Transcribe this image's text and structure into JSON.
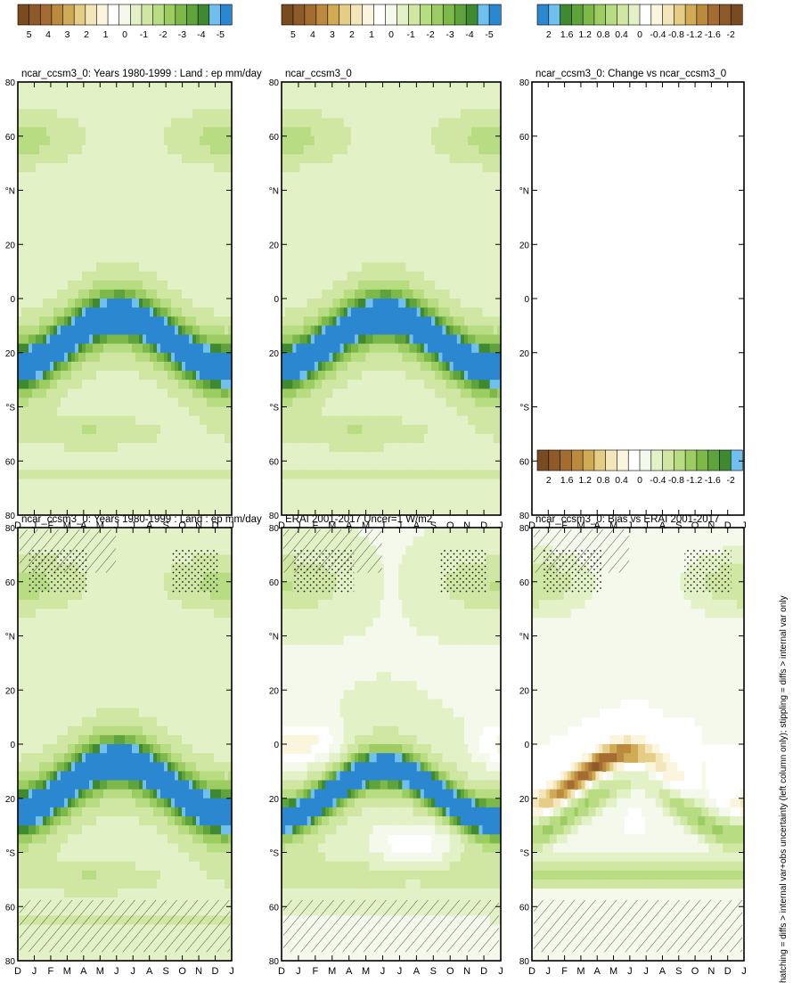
{
  "footer_note": "hatching = diffs > internal var+obs uncertainty (left column only); stippling = diffs > internal var only",
  "palettes": {
    "precip": [
      "#7a4b1e",
      "#8e5a28",
      "#a56c32",
      "#bc8a3e",
      "#d1aa55",
      "#e5cd86",
      "#f3e6bb",
      "#fbf5dd",
      "#ffffff",
      "#f4f9ec",
      "#e3f1c6",
      "#cfe7a2",
      "#b8dc82",
      "#9dcd62",
      "#7db948",
      "#5ea33c",
      "#3f8a30",
      "#6fc0ee",
      "#2b87cf"
    ],
    "diff": [
      "#2b87cf",
      "#6fc0ee",
      "#3f8a30",
      "#5ea33c",
      "#7db948",
      "#9dcd62",
      "#b8dc82",
      "#cfe7a2",
      "#e3f1c6",
      "#ffffff",
      "#fbf5dd",
      "#f3e6bb",
      "#e5cd86",
      "#d1aa55",
      "#bc8a3e",
      "#a56c32",
      "#8e5a28",
      "#7a4b1e"
    ]
  },
  "chart_data": [
    {
      "id": "r1c1",
      "type": "heatmap",
      "title": "ncar_ccsm3_0: Years 1980-1999 : Land : ep mm/day",
      "x": [
        "D",
        "J",
        "F",
        "M",
        "A",
        "M",
        "J",
        "J",
        "A",
        "S",
        "O",
        "N",
        "D",
        "J"
      ],
      "y_ticks": [
        "80",
        "60",
        "°N",
        "20",
        "0",
        "20",
        "°S",
        "60",
        "80"
      ],
      "colorbar": {
        "ticks": [
          "5",
          "4",
          "3",
          "2",
          "1",
          "0",
          "-1",
          "-2",
          "-3",
          "-4",
          "-5"
        ],
        "palette": "precip"
      },
      "field": "model_clim",
      "overlay": true
    },
    {
      "id": "r1c2",
      "type": "heatmap",
      "title": "ncar_ccsm3_0: Years 1980-1999 : Land : ep mm/day",
      "x": [
        "D",
        "J",
        "F",
        "M",
        "A",
        "M",
        "J",
        "J",
        "A",
        "S",
        "O",
        "N",
        "D",
        "J"
      ],
      "y_ticks": [
        "80",
        "60",
        "°N",
        "20",
        "0",
        "20",
        "°S",
        "60",
        "80"
      ],
      "colorbar": {
        "ticks": [
          "5",
          "4",
          "3",
          "2",
          "1",
          "0",
          "-1",
          "-2",
          "-3",
          "-4",
          "-5"
        ],
        "palette": "precip"
      },
      "field": "model_clim",
      "overlay": false
    },
    {
      "id": "r2c1",
      "type": "heatmap",
      "title": "ERAI 2001-2017 Uncer=1 W/m2",
      "x": [
        "D",
        "J",
        "F",
        "M",
        "A",
        "M",
        "J",
        "J",
        "A",
        "S",
        "O",
        "N",
        "D",
        "J"
      ],
      "y_ticks": [
        "80",
        "60",
        "°N",
        "20",
        "0",
        "20",
        "°S",
        "60",
        "80"
      ],
      "colorbar": {
        "ticks": [
          "5",
          "4",
          "3",
          "2",
          "1",
          "0",
          "-1",
          "-2",
          "-3",
          "-4",
          "-5"
        ],
        "palette": "precip"
      },
      "field": "obs_clim",
      "overlay": true
    },
    {
      "id": "r2c2",
      "type": "heatmap",
      "title": "ncar_ccsm3_0",
      "x": [
        "D",
        "J",
        "F",
        "M",
        "A",
        "M",
        "J",
        "J",
        "A",
        "S",
        "O",
        "N",
        "D",
        "J"
      ],
      "y_ticks": [
        "80",
        "60",
        "°N",
        "20",
        "0",
        "20",
        "°S",
        "60",
        "80"
      ],
      "colorbar": {
        "ticks": [
          "5",
          "4",
          "3",
          "2",
          "1",
          "0",
          "-1",
          "-2",
          "-3",
          "-4",
          "-5"
        ],
        "palette": "precip"
      },
      "field": "model_clim",
      "overlay": false
    },
    {
      "id": "r3c1",
      "type": "heatmap",
      "title": "ncar_ccsm3_0: Bias vs ERAI 2001-2017",
      "x": [
        "D",
        "J",
        "F",
        "M",
        "A",
        "M",
        "J",
        "J",
        "A",
        "S",
        "O",
        "N",
        "D",
        "J"
      ],
      "y_ticks": [
        "80",
        "60",
        "°N",
        "20",
        "0",
        "20",
        "°S",
        "60",
        "80"
      ],
      "colorbar": {
        "ticks": [
          "2",
          "1.6",
          "1.2",
          "0.8",
          "0.4",
          "0",
          "-0.4",
          "-0.8",
          "-1.2",
          "-1.6",
          "-2"
        ],
        "palette": "precip_diff"
      },
      "field": "bias",
      "overlay": true
    },
    {
      "id": "r3c2",
      "type": "heatmap",
      "title": "ncar_ccsm3_0: Change vs ncar_ccsm3_0",
      "x": [
        "D",
        "J",
        "F",
        "M",
        "A",
        "M",
        "J",
        "J",
        "A",
        "S",
        "O",
        "N",
        "D",
        "J"
      ],
      "y_ticks": [
        "80",
        "60",
        "°N",
        "20",
        "0",
        "20",
        "°S",
        "60",
        "80"
      ],
      "colorbar": {
        "ticks": [
          "2",
          "1.6",
          "1.2",
          "0.8",
          "0.4",
          "0",
          "-0.4",
          "-0.8",
          "-1.2",
          "-1.6",
          "-2"
        ],
        "palette": "diff"
      },
      "field": "none",
      "overlay": false
    }
  ]
}
